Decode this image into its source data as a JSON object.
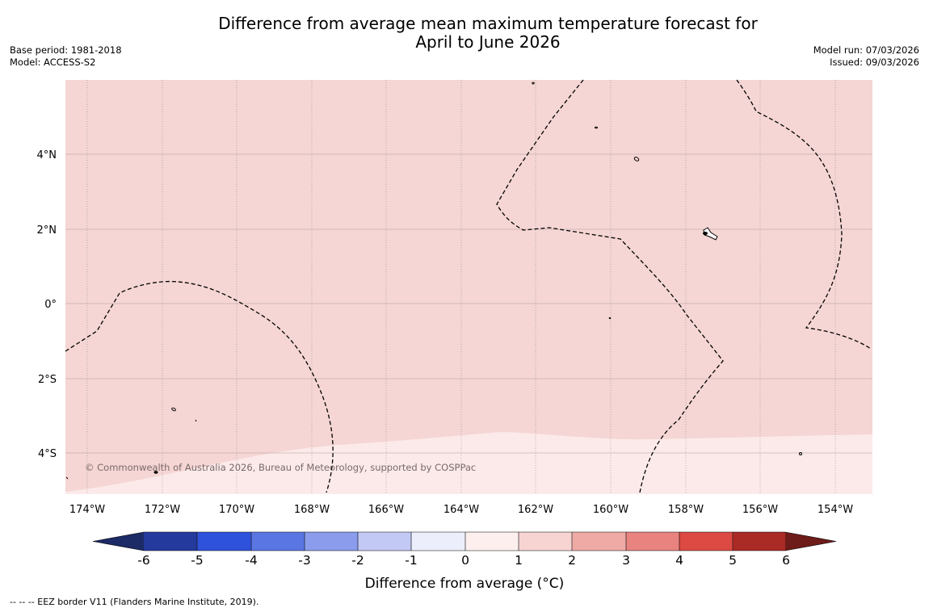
{
  "title": {
    "line1": "Difference from average mean maximum temperature forecast for",
    "line2": "April to June 2026"
  },
  "meta_left": {
    "base_period": "Base period: 1981-2018",
    "model": "Model: ACCESS-S2"
  },
  "meta_right": {
    "model_run": "Model run: 07/03/2026",
    "issued": "Issued: 09/03/2026"
  },
  "map": {
    "lon_ticks": [
      "174°W",
      "172°W",
      "170°W",
      "168°W",
      "166°W",
      "164°W",
      "162°W",
      "160°W",
      "158°W",
      "156°W",
      "154°W"
    ],
    "lat_ticks": [
      "4°N",
      "2°N",
      "0°",
      "2°S",
      "4°S"
    ],
    "fill_colors": {
      "band_1_2": "#f5d6d4",
      "band_0_1": "#fbeae9"
    },
    "copyright": "© Commonwealth of Australia 2026, Bureau of Meteorology, supported by COSPPac"
  },
  "colorbar": {
    "ticks": [
      "-6",
      "-5",
      "-4",
      "-3",
      "-2",
      "-1",
      "0",
      "1",
      "2",
      "3",
      "4",
      "5",
      "6"
    ],
    "colors": [
      "#243a9c",
      "#2f52dc",
      "#5a76e3",
      "#8a9ceb",
      "#c2c9f4",
      "#eceefb",
      "#fcefee",
      "#f7d4d2",
      "#efaaa6",
      "#e88380",
      "#dc4a43",
      "#aa2a26"
    ],
    "under_color": "#1c2a66",
    "over_color": "#6e1c19",
    "label": "Difference from average (°C)"
  },
  "footer": "--  --  -- EEZ border V11 (Flanders Marine Institute, 2019)."
}
